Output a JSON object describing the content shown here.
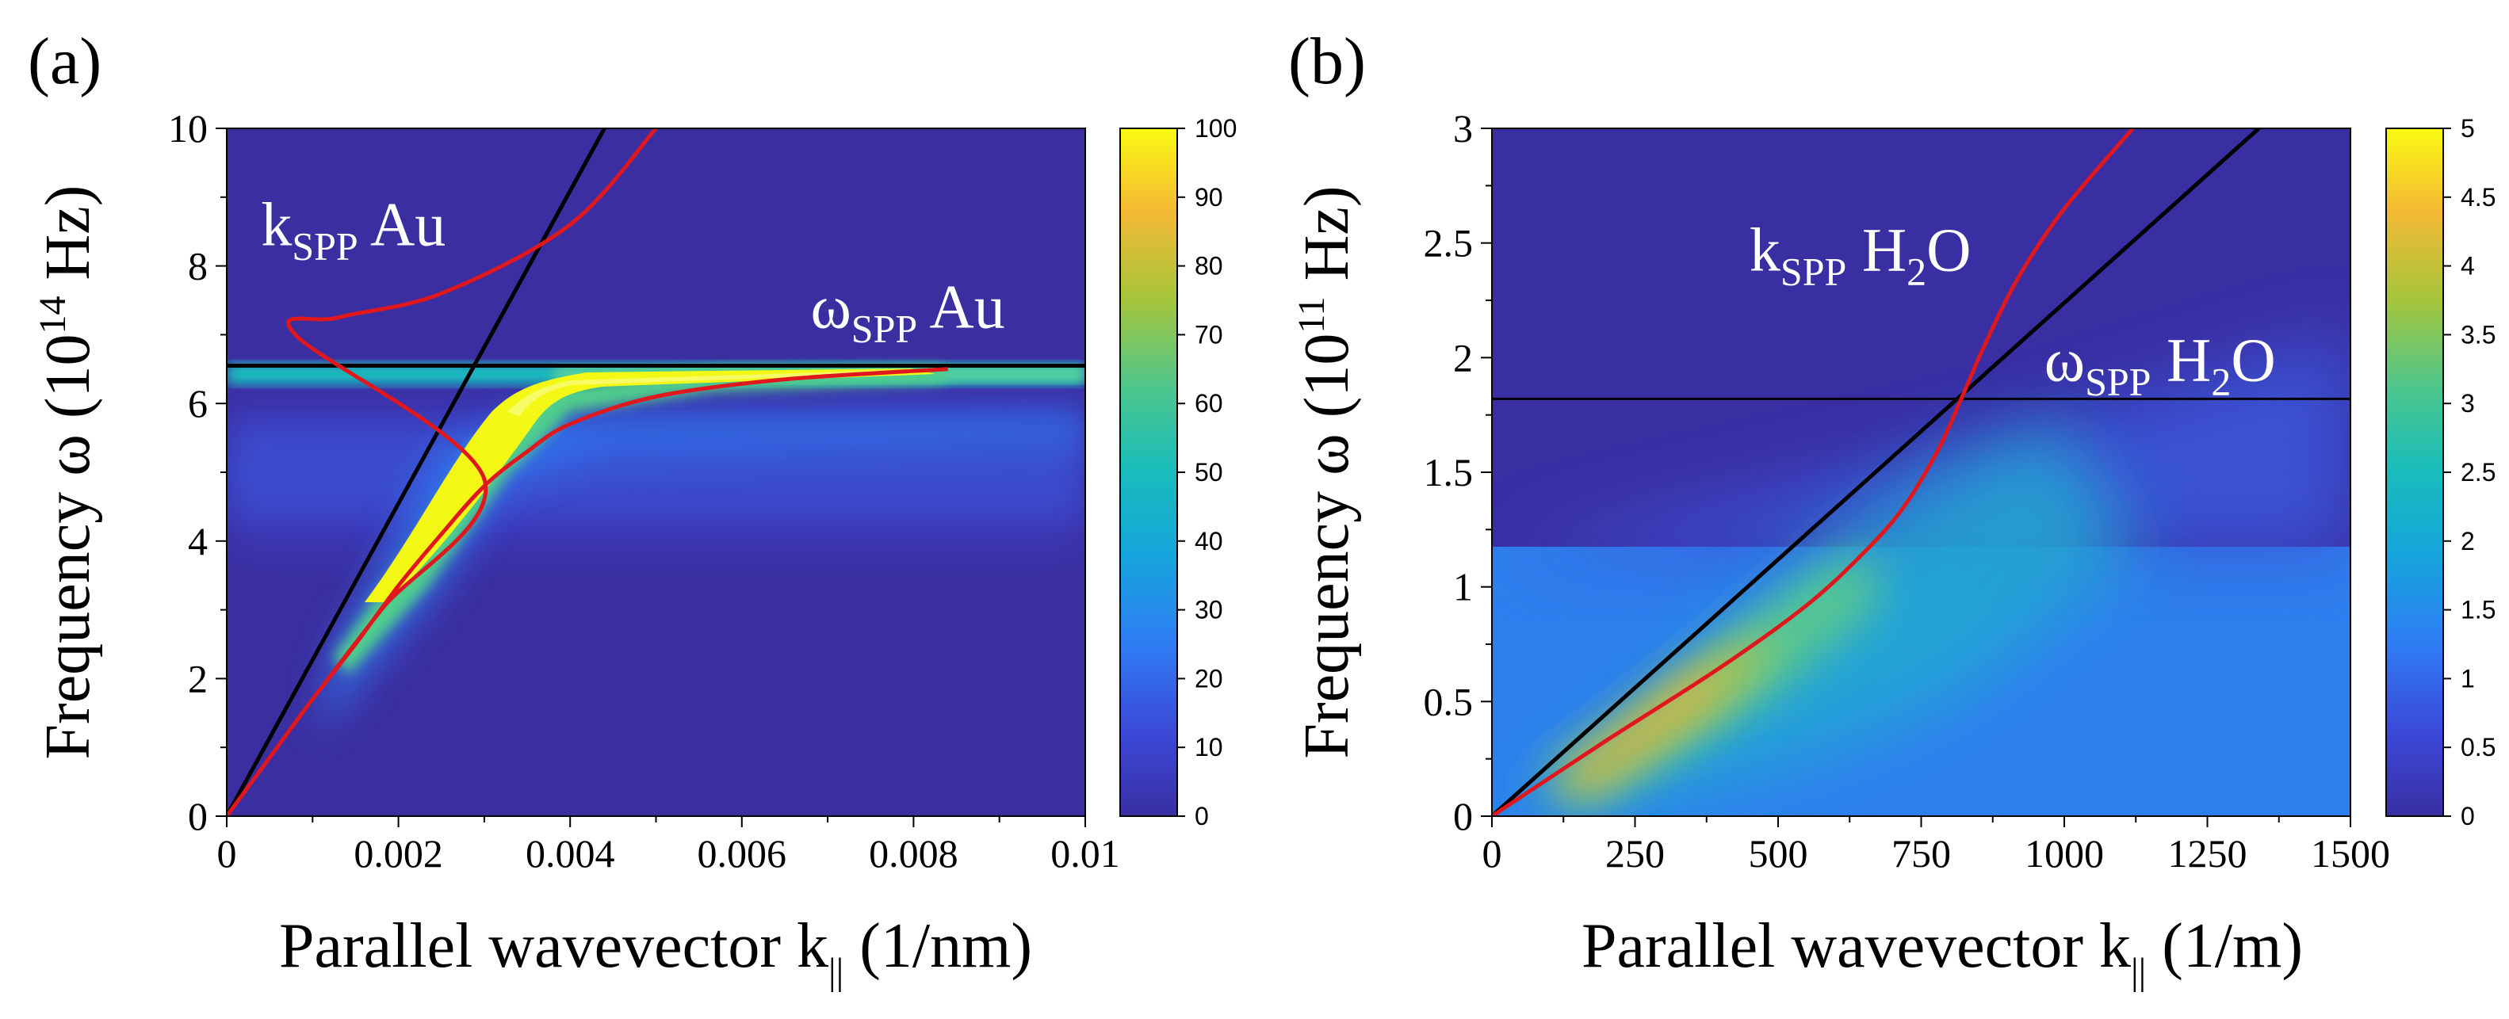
{
  "chart_data": [
    {
      "type": "heatmap",
      "panel_label": "(a)",
      "xlabel": {
        "main": "Parallel wavevector k",
        "sub": "||",
        "unit": " (1/nm)"
      },
      "ylabel": {
        "main": "Frequency ω (10",
        "sup": "14",
        "unit": " Hz)"
      },
      "xlim": [
        0,
        0.01
      ],
      "ylim": [
        0,
        10
      ],
      "xticks": [
        "0",
        "0.002",
        "0.004",
        "0.006",
        "0.008",
        "0.01"
      ],
      "yticks": [
        "0",
        "2",
        "4",
        "6",
        "8",
        "10"
      ],
      "colorbar": {
        "min": 0,
        "max": 100,
        "ticks": [
          "0",
          "10",
          "20",
          "30",
          "40",
          "50",
          "60",
          "70",
          "80",
          "90",
          "100"
        ]
      },
      "annotations": [
        {
          "main": "k",
          "sub": "SPP",
          "rest": " Au",
          "x": 0.0004,
          "y": 8.3
        },
        {
          "main": "ω",
          "sub": "SPP",
          "rest": " Au",
          "x": 0.0068,
          "y": 7.1
        }
      ],
      "light_line": {
        "k": [
          0,
          0.0044
        ],
        "w": [
          0,
          10
        ]
      },
      "omega_spp": 6.55,
      "spp_dispersion": {
        "k": [
          0.0084,
          0.0065,
          0.005,
          0.004,
          0.0035,
          0.003,
          0.0025,
          0.002,
          0.0015,
          0.001,
          0.0005,
          0.0,
          0.0005,
          0.001,
          0.0018,
          0.003,
          0.0008,
          0.0013,
          0.0025,
          0.004,
          0.005
        ],
        "w": [
          6.5,
          6.35,
          6.1,
          5.7,
          5.3,
          4.8,
          4.1,
          3.35,
          2.5,
          1.7,
          0.85,
          0.0,
          0.85,
          1.7,
          3.0,
          4.9,
          7.0,
          7.25,
          7.6,
          8.6,
          10.0
        ]
      }
    },
    {
      "type": "heatmap",
      "panel_label": "(b)",
      "xlabel": {
        "main": "Parallel wavevector k",
        "sub": "||",
        "unit": " (1/m)"
      },
      "ylabel": {
        "main": "Frequency ω (10",
        "sup": "11",
        "unit": " Hz)"
      },
      "xlim": [
        0,
        1500
      ],
      "ylim": [
        0,
        3
      ],
      "xticks": [
        "0",
        "250",
        "500",
        "750",
        "1000",
        "1250",
        "1500"
      ],
      "yticks": [
        "0",
        "0.5",
        "1",
        "1.5",
        "2",
        "2.5",
        "3"
      ],
      "colorbar": {
        "min": 0,
        "max": 5,
        "ticks": [
          "0",
          "0.5",
          "1",
          "1.5",
          "2",
          "2.5",
          "3",
          "3.5",
          "4",
          "4.5",
          "5"
        ]
      },
      "annotations": [
        {
          "main": "k",
          "sub": "SPP",
          "rest": " H",
          "sub2": "2",
          "rest2": "O",
          "x": 450,
          "y": 2.38
        },
        {
          "main": "ω",
          "sub": "SPP",
          "rest": " H",
          "sub2": "2",
          "rest2": "O",
          "x": 965,
          "y": 1.9
        }
      ],
      "light_line": {
        "k": [
          0,
          1340
        ],
        "w": [
          0,
          3
        ]
      },
      "omega_spp": 1.82,
      "spp_dispersion": {
        "k": [
          0,
          200,
          400,
          550,
          650,
          720,
          780,
          820,
          860,
          920,
          1000,
          1120
        ],
        "w": [
          0,
          0.33,
          0.65,
          0.92,
          1.15,
          1.35,
          1.6,
          1.82,
          2.05,
          2.35,
          2.65,
          3.0
        ]
      }
    }
  ]
}
